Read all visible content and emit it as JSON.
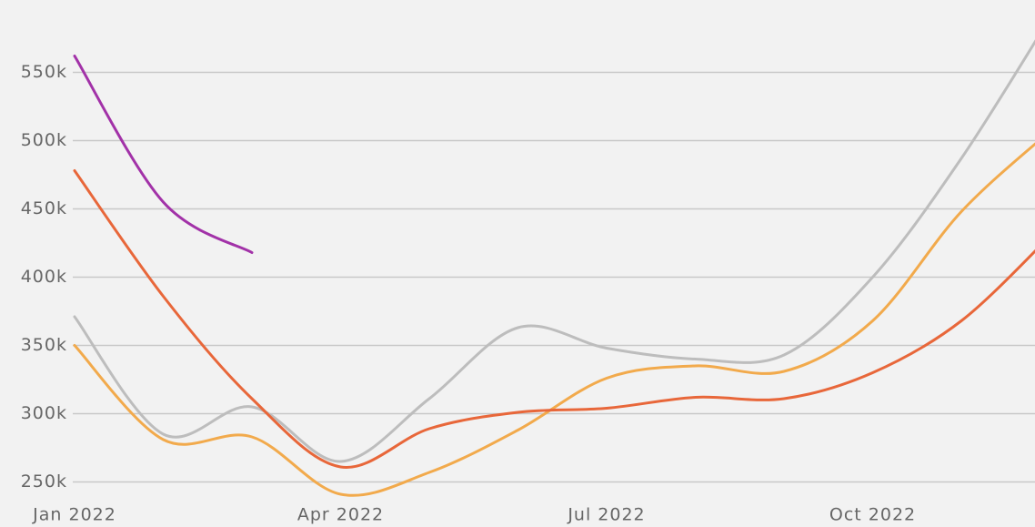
{
  "chart_data": {
    "type": "line",
    "x": [
      "2022-01",
      "2022-02",
      "2022-03",
      "2022-04",
      "2022-05",
      "2022-06",
      "2022-07",
      "2022-08",
      "2022-09",
      "2022-10",
      "2022-11",
      "2022-12"
    ],
    "xticks": [
      {
        "value": "2022-01",
        "label": "Jan 2022"
      },
      {
        "value": "2022-04",
        "label": "Apr 2022"
      },
      {
        "value": "2022-07",
        "label": "Jul 2022"
      },
      {
        "value": "2022-10",
        "label": "Oct 2022"
      }
    ],
    "series": [
      {
        "color": "#a232a8",
        "values": [
          562,
          455,
          418,
          null,
          null,
          null,
          null,
          null,
          null,
          null,
          null,
          null
        ]
      },
      {
        "color": "#bdbdbd",
        "values": [
          371,
          285,
          305,
          265,
          311,
          363,
          348,
          340,
          343,
          400,
          487,
          590
        ]
      },
      {
        "color": "#f2aa4c",
        "values": [
          350,
          281,
          283,
          241,
          257,
          288,
          326,
          335,
          331,
          368,
          448,
          507
        ]
      },
      {
        "color": "#e8673a",
        "values": [
          478,
          386,
          311,
          261,
          289,
          301,
          304,
          312,
          311,
          330,
          368,
          430
        ]
      }
    ],
    "ylim": [
      217,
      603
    ],
    "yticks": [
      {
        "value": 250,
        "label": "250k"
      },
      {
        "value": 300,
        "label": "300k"
      },
      {
        "value": 350,
        "label": "350k"
      },
      {
        "value": 400,
        "label": "400k"
      },
      {
        "value": 450,
        "label": "450k"
      },
      {
        "value": 500,
        "label": "500k"
      },
      {
        "value": 550,
        "label": "550k"
      }
    ],
    "grid": true
  }
}
